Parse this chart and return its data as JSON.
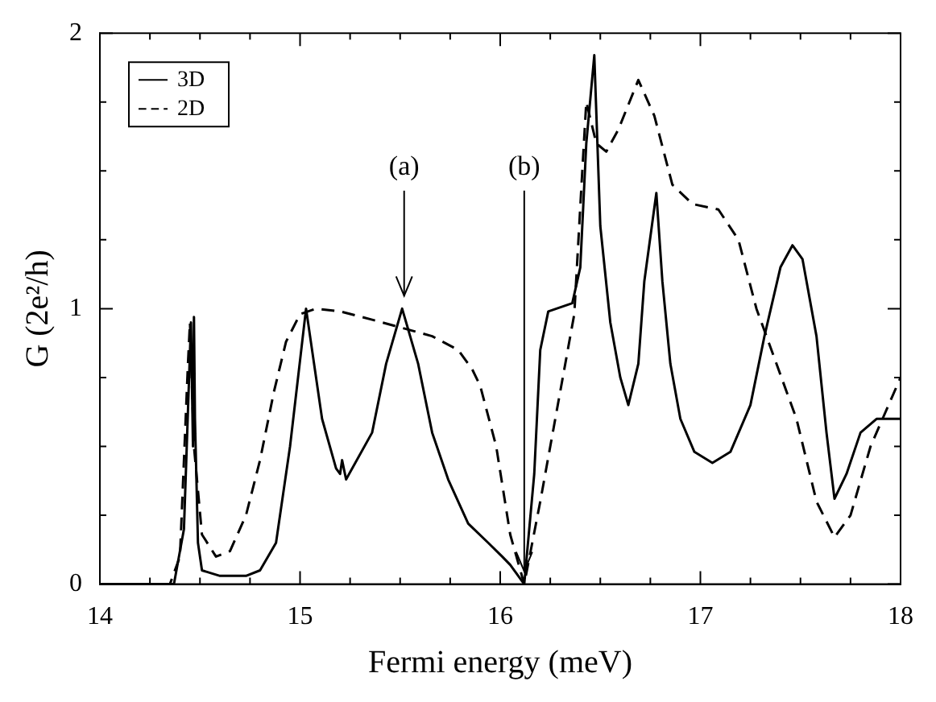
{
  "chart_data": {
    "type": "line",
    "xlabel": "Fermi energy (meV)",
    "ylabel": "G (2e²/h)",
    "xlim": [
      14,
      18
    ],
    "ylim": [
      0,
      2
    ],
    "xticks": [
      14,
      {
        "value": 14.25,
        "label": null
      },
      {
        "value": 14.5,
        "label": null
      },
      {
        "value": 14.75,
        "label": null
      },
      15,
      {
        "value": 15.25,
        "label": null
      },
      {
        "value": 15.5,
        "label": null
      },
      {
        "value": 15.75,
        "label": null
      },
      16,
      {
        "value": 16.25,
        "label": null
      },
      {
        "value": 16.5,
        "label": null
      },
      {
        "value": 16.75,
        "label": null
      },
      17,
      {
        "value": 17.25,
        "label": null
      },
      {
        "value": 17.5,
        "label": null
      },
      {
        "value": 17.75,
        "label": null
      },
      18
    ],
    "yticks": [
      0,
      {
        "value": 0.25,
        "label": null
      },
      {
        "value": 0.5,
        "label": null
      },
      {
        "value": 0.75,
        "label": null
      },
      1,
      {
        "value": 1.25,
        "label": null
      },
      {
        "value": 1.5,
        "label": null
      },
      {
        "value": 1.75,
        "label": null
      },
      2
    ],
    "grid": false,
    "legend": "top left",
    "marker": "none",
    "annotations": [
      {
        "text": "(a)",
        "x": 15.52,
        "y": 1.0
      },
      {
        "text": "(b)",
        "x": 16.12,
        "y": 0
      }
    ],
    "series": [
      {
        "name": "3D",
        "color": "#000000",
        "line_style": "solid",
        "x": [
          14,
          14.37,
          14.42,
          14.455,
          14.465,
          14.47,
          14.475,
          14.49,
          14.51,
          14.6,
          14.73,
          14.8,
          14.88,
          14.95,
          15.03,
          15.11,
          15.18,
          15.2,
          15.21,
          15.23,
          15.36,
          15.43,
          15.51,
          15.59,
          15.66,
          15.74,
          15.84,
          15.94,
          16.01,
          16.05,
          16.12,
          16.17,
          16.2,
          16.24,
          16.36,
          16.4,
          16.43,
          16.47,
          16.5,
          16.55,
          16.6,
          16.64,
          16.69,
          16.72,
          16.78,
          16.81,
          16.85,
          16.9,
          16.97,
          17.06,
          17.15,
          17.25,
          17.32,
          17.4,
          17.46,
          17.51,
          17.58,
          17.63,
          17.67,
          17.73,
          17.8,
          17.88,
          18
        ],
        "values": [
          0,
          0,
          0.2,
          0.95,
          0.5,
          0.97,
          0.6,
          0.15,
          0.05,
          0.03,
          0.03,
          0.05,
          0.15,
          0.5,
          1.0,
          0.6,
          0.42,
          0.4,
          0.45,
          0.38,
          0.55,
          0.8,
          1.0,
          0.8,
          0.55,
          0.38,
          0.22,
          0.15,
          0.1,
          0.07,
          0,
          0.4,
          0.85,
          0.99,
          1.02,
          1.15,
          1.6,
          1.92,
          1.3,
          0.95,
          0.75,
          0.65,
          0.8,
          1.1,
          1.42,
          1.1,
          0.8,
          0.6,
          0.48,
          0.44,
          0.48,
          0.65,
          0.9,
          1.15,
          1.23,
          1.18,
          0.9,
          0.55,
          0.31,
          0.4,
          0.55,
          0.6,
          0.6
        ]
      },
      {
        "name": "2D",
        "color": "#000000",
        "line_style": "dashed",
        "x": [
          14,
          14.35,
          14.4,
          14.44,
          14.45,
          14.47,
          14.51,
          14.58,
          14.65,
          14.73,
          14.8,
          14.87,
          14.93,
          15.0,
          15.08,
          15.2,
          15.36,
          15.51,
          15.66,
          15.79,
          15.86,
          15.9,
          15.98,
          16.05,
          16.12,
          16.2,
          16.3,
          16.37,
          16.41,
          16.43,
          16.48,
          16.53,
          16.59,
          16.69,
          16.77,
          16.86,
          16.96,
          17.09,
          17.19,
          17.28,
          17.38,
          17.48,
          17.58,
          17.67,
          17.75,
          17.85,
          18
        ],
        "values": [
          0,
          0,
          0.1,
          0.8,
          0.95,
          0.5,
          0.18,
          0.1,
          0.12,
          0.25,
          0.45,
          0.7,
          0.88,
          0.98,
          1.0,
          0.99,
          0.96,
          0.93,
          0.9,
          0.85,
          0.78,
          0.72,
          0.5,
          0.18,
          0,
          0.3,
          0.7,
          0.98,
          1.5,
          1.75,
          1.6,
          1.57,
          1.65,
          1.83,
          1.7,
          1.45,
          1.38,
          1.36,
          1.25,
          1.0,
          0.8,
          0.6,
          0.3,
          0.17,
          0.25,
          0.5,
          0.75
        ]
      }
    ]
  }
}
